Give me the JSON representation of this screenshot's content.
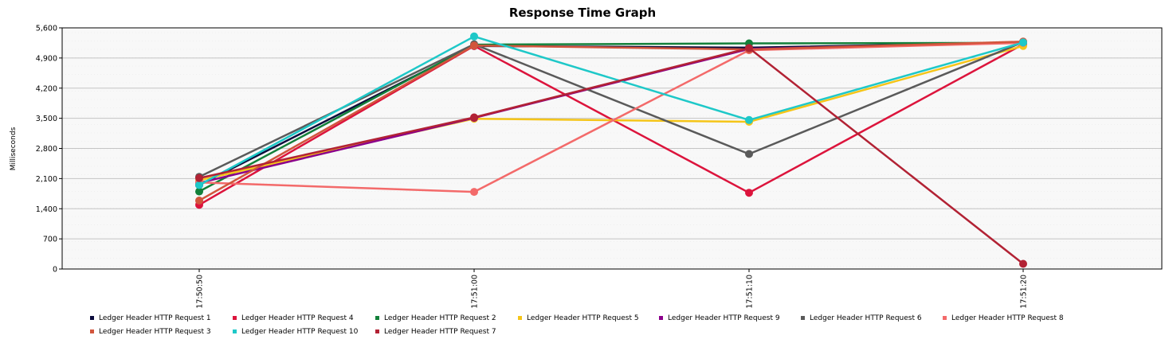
{
  "chart_data": {
    "type": "line",
    "title": "Response Time Graph",
    "xlabel": "",
    "ylabel": "Milliseconds",
    "x": [
      "17:50:50",
      "17:51:00",
      "17:51:10",
      "17:51:20"
    ],
    "ylim": [
      0,
      5600
    ],
    "yticks": [
      "0",
      "700",
      "1,400",
      "2,100",
      "2,800",
      "3,500",
      "4,200",
      "4,900",
      "5,600"
    ],
    "ytick_values": [
      0,
      700,
      1400,
      2100,
      2800,
      3500,
      4200,
      4900,
      5600
    ],
    "grid": true,
    "legend": "bottom",
    "series": [
      {
        "name": "Ledger Header HTTP Request 1",
        "color": "#0b0b3b",
        "values": [
          1950,
          5180,
          5140,
          5260
        ]
      },
      {
        "name": "Ledger Header HTTP Request 4",
        "color": "#dc143c",
        "values": [
          1490,
          5180,
          1770,
          5220
        ]
      },
      {
        "name": "Ledger Header HTTP Request 2",
        "color": "#13803a",
        "values": [
          1800,
          5210,
          5240,
          5250
        ]
      },
      {
        "name": "Ledger Header HTTP Request 5",
        "color": "#f5c518",
        "values": [
          2060,
          3490,
          3420,
          5180
        ]
      },
      {
        "name": "Ledger Header HTTP Request 9",
        "color": "#8b008b",
        "values": [
          2000,
          3510,
          5110,
          5260
        ]
      },
      {
        "name": "Ledger Header HTTP Request 6",
        "color": "#5a5a5a",
        "values": [
          2140,
          5220,
          2670,
          5270
        ]
      },
      {
        "name": "Ledger Header HTTP Request 8",
        "color": "#f36a6a",
        "values": [
          2010,
          1790,
          5080,
          5250
        ]
      },
      {
        "name": "Ledger Header HTTP Request 3",
        "color": "#d2553c",
        "values": [
          1590,
          5190,
          5100,
          5280
        ]
      },
      {
        "name": "Ledger Header HTTP Request 10",
        "color": "#1ec8c8",
        "values": [
          1950,
          5400,
          3460,
          5260
        ]
      },
      {
        "name": "Ledger Header HTTP Request 7",
        "color": "#b22234",
        "values": [
          2110,
          3520,
          5130,
          120
        ]
      }
    ]
  }
}
